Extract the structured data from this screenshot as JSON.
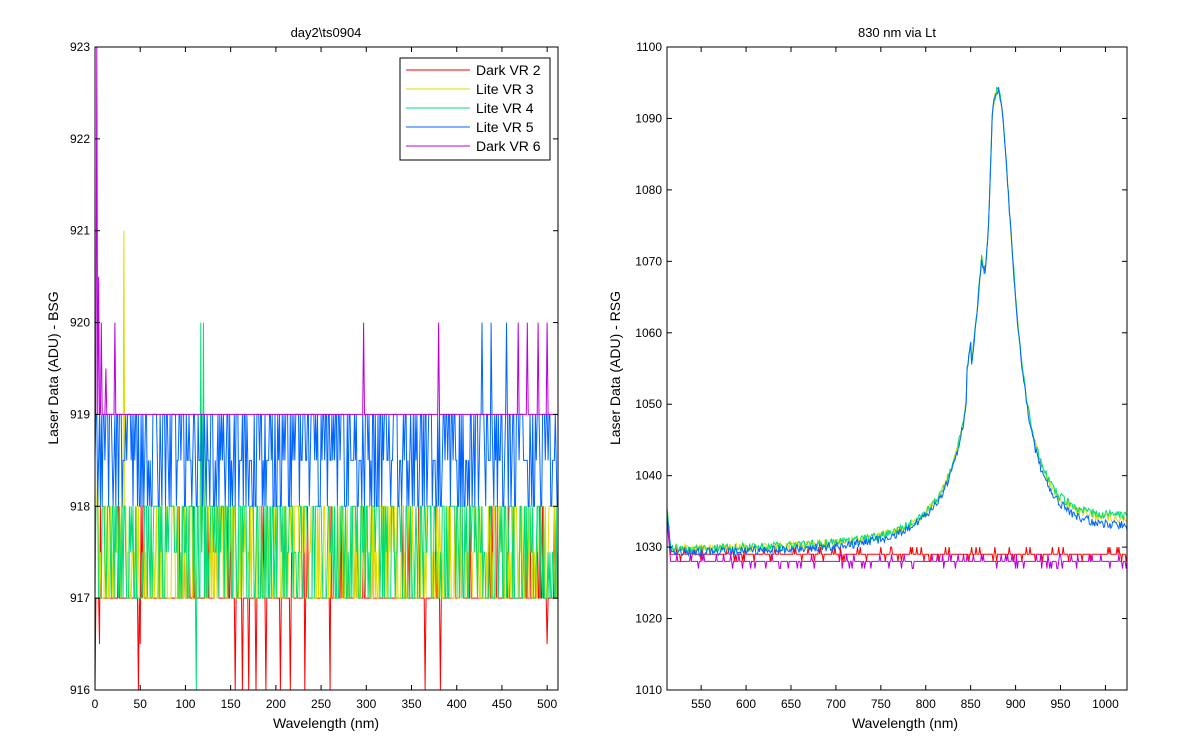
{
  "chart_data": [
    {
      "type": "line",
      "title": "day2\\ts0904",
      "xlabel": "Wavelength (nm)",
      "ylabel": "Laser Data (ADU) - BSG",
      "xlim": [
        0,
        512
      ],
      "ylim": [
        916,
        923
      ],
      "xticks": [
        0,
        50,
        100,
        150,
        200,
        250,
        300,
        350,
        400,
        450,
        500
      ],
      "yticks": [
        916,
        917,
        918,
        919,
        920,
        921,
        922,
        923
      ],
      "legend": "top-right",
      "series": [
        {
          "name": "Dark VR 2",
          "color": "#ff0000",
          "base": 917,
          "alt": 918,
          "alt_fraction": 0.07,
          "spikes": [
            [
              0,
              916
            ],
            [
              5,
              916.5
            ],
            [
              48,
              916
            ],
            [
              50,
              916.5
            ],
            [
              155,
              916
            ],
            [
              163,
              916
            ],
            [
              170,
              916
            ],
            [
              178,
              916
            ],
            [
              189,
              916
            ],
            [
              205,
              916
            ],
            [
              216,
              916
            ],
            [
              232,
              916
            ],
            [
              260,
              916
            ],
            [
              365,
              916
            ],
            [
              382,
              916
            ],
            [
              500,
              916.5
            ]
          ]
        },
        {
          "name": "Lite VR 3",
          "color": "#dddd00",
          "base": 917,
          "alt": 918,
          "alt_fraction": 0.4,
          "half_fraction": 0.18,
          "spikes": [
            [
              3,
              918.5
            ],
            [
              32,
              921
            ],
            [
              120,
              919
            ]
          ]
        },
        {
          "name": "Lite VR 4",
          "color": "#00dd77",
          "base": 917,
          "alt": 918,
          "alt_fraction": 0.45,
          "half_fraction": 0.2,
          "spikes": [
            [
              112,
              916
            ],
            [
              117,
              920
            ],
            [
              120,
              920
            ]
          ]
        },
        {
          "name": "Lite VR 5",
          "color": "#0066ff",
          "base": 918,
          "alt": 919,
          "alt_fraction": 0.5,
          "half_fraction": 0.25,
          "spikes": [
            [
              428,
              920
            ],
            [
              438,
              920
            ],
            [
              455,
              920
            ]
          ]
        },
        {
          "name": "Dark VR 6",
          "color": "#bb00dd",
          "base": 919,
          "alt": 919,
          "alt_fraction": 0,
          "spikes": [
            [
              2,
              923
            ],
            [
              4,
              920.5
            ],
            [
              7,
              920
            ],
            [
              12,
              919.5
            ],
            [
              22,
              920
            ],
            [
              297,
              920
            ],
            [
              380,
              920
            ],
            [
              380,
              918.5
            ],
            [
              468,
              920
            ],
            [
              478,
              920
            ],
            [
              490,
              920
            ],
            [
              500,
              920
            ],
            [
              500,
              916
            ]
          ]
        }
      ]
    },
    {
      "type": "line",
      "title": "830 nm via Lt",
      "xlabel": "Wavelength (nm)",
      "ylabel": "Laser Data (ADU) - RSG",
      "xlim": [
        512,
        1024
      ],
      "ylim": [
        1010,
        1100
      ],
      "xticks": [
        550,
        600,
        650,
        700,
        750,
        800,
        850,
        900,
        950,
        1000
      ],
      "yticks": [
        1010,
        1020,
        1030,
        1040,
        1050,
        1060,
        1070,
        1080,
        1090,
        1100
      ],
      "series": [
        {
          "name": "Dark VR 2",
          "color": "#ff0000",
          "profile": "flat",
          "level": 1029,
          "noise": 1
        },
        {
          "name": "Lite VR 3",
          "color": "#dddd00",
          "profile": "peak",
          "peak_x": 880,
          "peak_y": 1094,
          "base": 1029.5,
          "tail": 1032.5
        },
        {
          "name": "Lite VR 4",
          "color": "#00dd77",
          "profile": "peak",
          "peak_x": 880,
          "peak_y": 1094,
          "base": 1029.5,
          "tail": 1033
        },
        {
          "name": "Lite VR 5",
          "color": "#0066ff",
          "profile": "peak",
          "peak_x": 880,
          "peak_y": 1094,
          "base": 1029,
          "tail": 1031.5
        },
        {
          "name": "Dark VR 6",
          "color": "#bb00dd",
          "profile": "flat",
          "level": 1028,
          "noise": 1
        }
      ]
    }
  ]
}
